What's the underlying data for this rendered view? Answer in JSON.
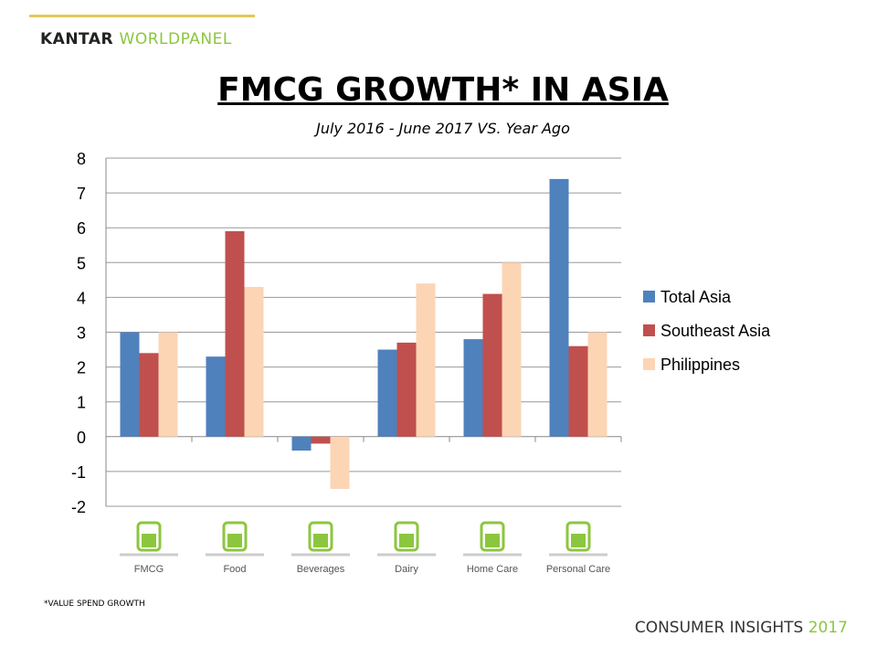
{
  "logo": {
    "part1": "KANTAR",
    "part2": "WORLDPANEL"
  },
  "title": "FMCG GROWTH* IN ASIA",
  "subtitle": "July 2016 - June 2017 VS. Year Ago",
  "footnote": "*VALUE SPEND GROWTH",
  "brand": {
    "text": "CONSUMER INSIGHTS",
    "year": "2017"
  },
  "chart_data": {
    "type": "bar",
    "title": "FMCG GROWTH* IN ASIA",
    "categories": [
      "FMCG",
      "Food",
      "Beverages",
      "Dairy",
      "Home Care",
      "Personal Care"
    ],
    "category_icons": [
      "basket-icon",
      "spoon-fork-icon",
      "bottle-glass-icon",
      "milk-bottle-icon",
      "dish-detergent-icon",
      "soap-pump-icon"
    ],
    "series": [
      {
        "name": "Total Asia",
        "color": "#4f81bd",
        "values": [
          3.0,
          2.3,
          -0.4,
          2.5,
          2.8,
          7.4
        ]
      },
      {
        "name": "Southeast Asia",
        "color": "#c0504d",
        "values": [
          2.4,
          5.9,
          -0.2,
          2.7,
          4.1,
          2.6
        ]
      },
      {
        "name": "Philippines",
        "color": "#fcd5b5",
        "values": [
          3.0,
          4.3,
          -1.5,
          4.4,
          5.0,
          3.0
        ]
      }
    ],
    "ylim": [
      -2,
      8
    ],
    "yticks": [
      "-2",
      "-1",
      "0",
      "1",
      "2",
      "3",
      "4",
      "5",
      "6",
      "7",
      "8"
    ],
    "grid": true,
    "legend": "right",
    "xlabel": "",
    "ylabel": ""
  }
}
